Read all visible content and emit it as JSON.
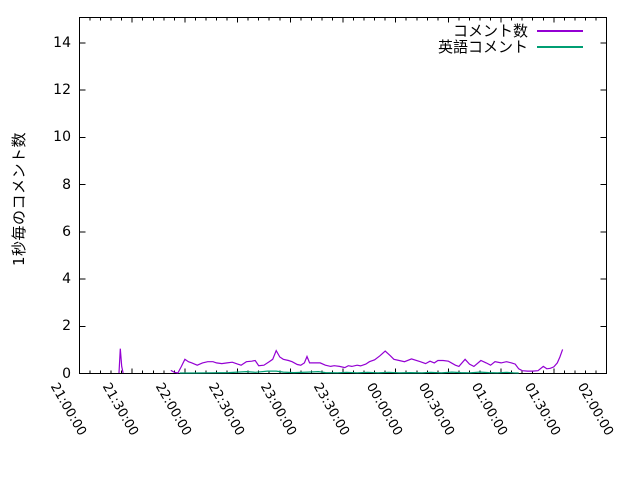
{
  "figure": {
    "background": "#ffffff",
    "axis_color": "#000000"
  },
  "chart_data": {
    "type": "line",
    "title": "",
    "xlabel": "",
    "ylabel": "1秒毎のコメント数",
    "grid": false,
    "legend_position": "top-right-inside",
    "x_range": [
      0,
      300
    ],
    "x_major_step": 30,
    "x_minor_step": 6,
    "x_ticks": [
      {
        "m": 0,
        "label": "21:00:00"
      },
      {
        "m": 30,
        "label": "21:30:00"
      },
      {
        "m": 60,
        "label": "22:00:00"
      },
      {
        "m": 90,
        "label": "22:30:00"
      },
      {
        "m": 120,
        "label": "23:00:00"
      },
      {
        "m": 150,
        "label": "23:30:00"
      },
      {
        "m": 180,
        "label": "00:00:00"
      },
      {
        "m": 210,
        "label": "00:30:00"
      },
      {
        "m": 240,
        "label": "01:00:00"
      },
      {
        "m": 270,
        "label": "01:30:00"
      },
      {
        "m": 300,
        "label": "02:00:00"
      }
    ],
    "y_range": [
      0,
      15.08
    ],
    "y_ticks": [
      0,
      2,
      4,
      6,
      8,
      10,
      12,
      14
    ],
    "series": [
      {
        "name": "コメント数",
        "color": "#9400d3",
        "x_unit": "minutes_after_21:00",
        "segments": [
          [
            [
              22.5,
              0.02
            ],
            [
              23.2,
              1.05
            ],
            [
              24,
              0.3
            ],
            [
              24.8,
              0.02
            ]
          ],
          [
            [
              52,
              0.13
            ],
            [
              54,
              0.05
            ],
            [
              56,
              0.02
            ],
            [
              58,
              0.3
            ],
            [
              60,
              0.6
            ],
            [
              62,
              0.5
            ],
            [
              64,
              0.45
            ],
            [
              67,
              0.35
            ],
            [
              70,
              0.45
            ],
            [
              73,
              0.5
            ],
            [
              76,
              0.5
            ],
            [
              78,
              0.45
            ],
            [
              81,
              0.42
            ],
            [
              84,
              0.45
            ],
            [
              87,
              0.48
            ],
            [
              90,
              0.4
            ],
            [
              92,
              0.35
            ],
            [
              95,
              0.5
            ],
            [
              98,
              0.52
            ],
            [
              100,
              0.55
            ],
            [
              102,
              0.33
            ],
            [
              105,
              0.35
            ],
            [
              108,
              0.5
            ],
            [
              110,
              0.6
            ],
            [
              112,
              0.97
            ],
            [
              114,
              0.7
            ],
            [
              116,
              0.6
            ],
            [
              119,
              0.55
            ],
            [
              121,
              0.5
            ],
            [
              124,
              0.38
            ],
            [
              126,
              0.35
            ],
            [
              128,
              0.45
            ],
            [
              129.5,
              0.72
            ],
            [
              131,
              0.45
            ],
            [
              134,
              0.45
            ],
            [
              137,
              0.45
            ],
            [
              140,
              0.35
            ],
            [
              143,
              0.3
            ],
            [
              145,
              0.33
            ],
            [
              148,
              0.3
            ],
            [
              151,
              0.25
            ],
            [
              153,
              0.33
            ],
            [
              155,
              0.3
            ],
            [
              158,
              0.35
            ],
            [
              160,
              0.32
            ],
            [
              163,
              0.4
            ],
            [
              165,
              0.5
            ],
            [
              168,
              0.58
            ],
            [
              171,
              0.75
            ],
            [
              174,
              0.95
            ],
            [
              177,
              0.75
            ],
            [
              179,
              0.6
            ],
            [
              182,
              0.55
            ],
            [
              185,
              0.5
            ],
            [
              189,
              0.62
            ],
            [
              194,
              0.5
            ],
            [
              197,
              0.42
            ],
            [
              199.5,
              0.52
            ],
            [
              202,
              0.45
            ],
            [
              204,
              0.55
            ],
            [
              207,
              0.55
            ],
            [
              210,
              0.52
            ],
            [
              214,
              0.35
            ],
            [
              216,
              0.3
            ],
            [
              219.5,
              0.6
            ],
            [
              222,
              0.4
            ],
            [
              224.5,
              0.3
            ],
            [
              228.5,
              0.55
            ],
            [
              231.5,
              0.45
            ],
            [
              234,
              0.35
            ],
            [
              236.5,
              0.5
            ],
            [
              240,
              0.45
            ],
            [
              243,
              0.5
            ],
            [
              246,
              0.45
            ],
            [
              248,
              0.4
            ],
            [
              250,
              0.2
            ],
            [
              252,
              0.12
            ],
            [
              255,
              0.1
            ],
            [
              258,
              0.1
            ],
            [
              261,
              0.12
            ],
            [
              264,
              0.3
            ],
            [
              266,
              0.2
            ],
            [
              268,
              0.22
            ],
            [
              270,
              0.28
            ],
            [
              272,
              0.45
            ],
            [
              273.5,
              0.7
            ],
            [
              275,
              1.02
            ]
          ]
        ]
      },
      {
        "name": "英語コメント",
        "color": "#009e73",
        "x_unit": "minutes_after_21:00",
        "segments": [
          [
            [
              57,
              0.02
            ],
            [
              65,
              0.02
            ],
            [
              75,
              0.03
            ],
            [
              85,
              0.04
            ],
            [
              95,
              0.08
            ],
            [
              100,
              0.05
            ],
            [
              107,
              0.1
            ],
            [
              112,
              0.1
            ],
            [
              116,
              0.06
            ],
            [
              122,
              0.04
            ],
            [
              130,
              0.06
            ],
            [
              136,
              0.08
            ],
            [
              140,
              0.04
            ],
            [
              147,
              0.03
            ],
            [
              152,
              0.05
            ],
            [
              158,
              0.03
            ],
            [
              164,
              0.05
            ],
            [
              170,
              0.03
            ],
            [
              176,
              0.05
            ],
            [
              182,
              0.03
            ],
            [
              188,
              0.04
            ],
            [
              195,
              0.03
            ],
            [
              200,
              0.05
            ],
            [
              206,
              0.03
            ],
            [
              212,
              0.06
            ],
            [
              217,
              0.04
            ],
            [
              222,
              0.03
            ],
            [
              228,
              0.06
            ],
            [
              233,
              0.04
            ],
            [
              238,
              0.03
            ],
            [
              243,
              0.05
            ],
            [
              247,
              0.03
            ],
            [
              250,
              0.02
            ]
          ]
        ]
      }
    ]
  }
}
